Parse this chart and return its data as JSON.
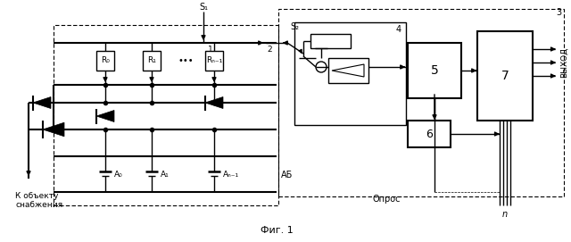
{
  "fig_width": 6.4,
  "fig_height": 2.71,
  "dpi": 100,
  "bg_color": "#ffffff",
  "fig_label": "Фиг. 1",
  "k_obekt": "К объекту\nснабжения",
  "ab_label": "АБ",
  "opros_label": "Опрос",
  "vykhod_label": "ВЫХОД",
  "n_label": "n",
  "s1_label": "S₁",
  "s2_label": "S₂",
  "label_1": "1",
  "label_2": "2",
  "label_3": "3",
  "label_4": "4",
  "label_5": "5",
  "label_6": "6",
  "label_7": "7",
  "R0": "R₀",
  "R1": "R₁",
  "Rn1": "Rₙ₋₁",
  "A0": "A₀",
  "A1": "A₁",
  "An1": "Aₙ₋₁",
  "dots": "•••"
}
